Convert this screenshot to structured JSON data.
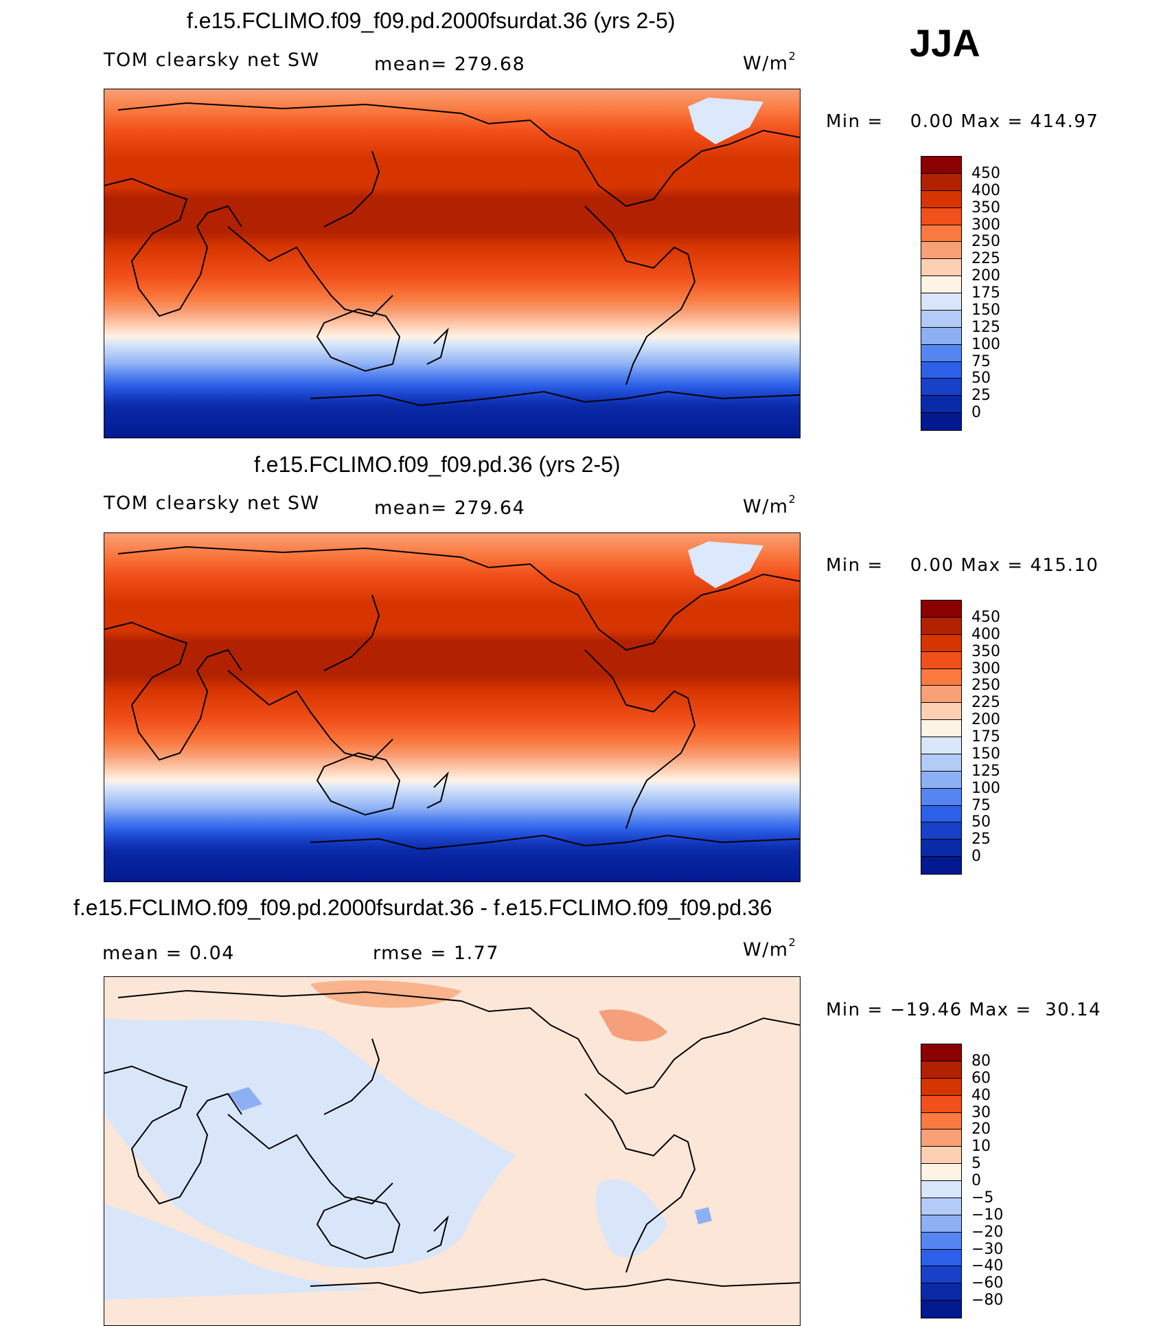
{
  "season": "JJA",
  "panels": [
    {
      "title": "f.e15.FCLIMO.f09_f09.pd.2000fsurdat.36 (yrs 2-5)",
      "left_label": "TOM clearsky net SW",
      "center_label": "mean= 279.68",
      "units": "W/m",
      "units_sup": "2",
      "minmax": "Min =    0.00 Max = 414.97",
      "colorbar": {
        "colors": [
          "#8b0000",
          "#b22200",
          "#d63500",
          "#f2501a",
          "#fa7a40",
          "#f9a077",
          "#fdd0b4",
          "#fff3e6",
          "#d9e6fa",
          "#b3ccf7",
          "#8db0f5",
          "#5585f0",
          "#2d60e8",
          "#1840c8",
          "#0a2aa8",
          "#021990"
        ],
        "labels": [
          "450",
          "400",
          "350",
          "300",
          "250",
          "225",
          "200",
          "175",
          "150",
          "125",
          "100",
          "75",
          "50",
          "25",
          "0"
        ]
      }
    },
    {
      "title": "f.e15.FCLIMO.f09_f09.pd.36 (yrs 2-5)",
      "left_label": "TOM clearsky net SW",
      "center_label": "mean= 279.64",
      "units": "W/m",
      "units_sup": "2",
      "minmax": "Min =    0.00 Max = 415.10",
      "colorbar": {
        "colors": [
          "#8b0000",
          "#b22200",
          "#d63500",
          "#f2501a",
          "#fa7a40",
          "#f9a077",
          "#fdd0b4",
          "#fff3e6",
          "#d9e6fa",
          "#b3ccf7",
          "#8db0f5",
          "#5585f0",
          "#2d60e8",
          "#1840c8",
          "#0a2aa8",
          "#021990"
        ],
        "labels": [
          "450",
          "400",
          "350",
          "300",
          "250",
          "225",
          "200",
          "175",
          "150",
          "125",
          "100",
          "75",
          "50",
          "25",
          "0"
        ]
      }
    },
    {
      "title": "f.e15.FCLIMO.f09_f09.pd.2000fsurdat.36 - f.e15.FCLIMO.f09_f09.pd.36",
      "left_label": "mean =    0.04",
      "center_label": "rmse =    1.77",
      "units": "W/m",
      "units_sup": "2",
      "minmax": "Min = −19.46 Max =  30.14",
      "colorbar": {
        "colors": [
          "#8b0000",
          "#b22200",
          "#d63500",
          "#f2501a",
          "#fa7a40",
          "#f9a077",
          "#fdd0b4",
          "#fff3e6",
          "#d9e6fa",
          "#b3ccf7",
          "#8db0f5",
          "#5585f0",
          "#2d60e8",
          "#1840c8",
          "#0a2aa8",
          "#021990"
        ],
        "labels": [
          "80",
          "60",
          "40",
          "30",
          "20",
          "10",
          "5",
          "0",
          "−5",
          "−10",
          "−20",
          "−30",
          "−40",
          "−60",
          "−80"
        ]
      }
    }
  ]
}
